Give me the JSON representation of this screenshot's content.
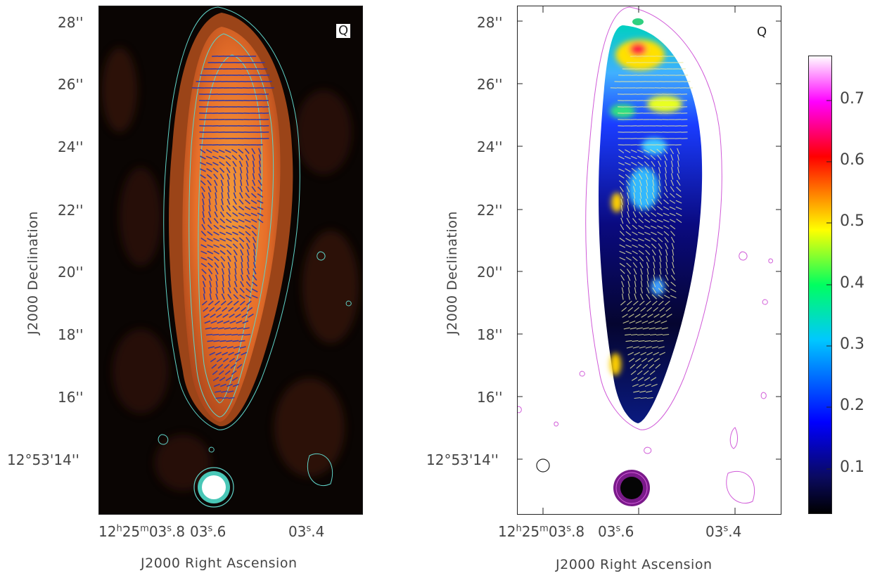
{
  "figure": {
    "left_panel": {
      "corner_label": "Q",
      "y_ticks": [
        "28''",
        "26''",
        "24''",
        "22''",
        "20''",
        "18''",
        "16''"
      ],
      "y_tick_last": "12°53'14''",
      "x_ticks": [
        "12h25m03s.8",
        "03s.6",
        "03s.4"
      ],
      "xlabel": "J2000 Right Ascension",
      "ylabel": "J2000 Declination"
    },
    "right_panel": {
      "corner_label": "Q",
      "y_ticks": [
        "28''",
        "26''",
        "24''",
        "22''",
        "20''",
        "18''",
        "16''"
      ],
      "y_tick_last": "12°53'14''",
      "x_ticks": [
        "12h25m03s.8",
        "03s.6",
        "03s.4"
      ],
      "xlabel": "J2000 Right Ascension",
      "ylabel": "J2000 Declination"
    },
    "colorbar": {
      "ticks": [
        "0.7",
        "0.6",
        "0.5",
        "0.4",
        "0.3",
        "0.2",
        "0.1"
      ],
      "colors": [
        "#000000",
        "#0a0a60",
        "#0000ff",
        "#00c8ff",
        "#00ff60",
        "#ffff00",
        "#ff8000",
        "#ff0000",
        "#ff00ff",
        "#ffffff"
      ]
    },
    "colors": {
      "left_background": "#0a0503",
      "left_jet": "#e86d2a",
      "left_contour": "#5fd3c8",
      "vector": "#3a3aa0",
      "right_contour": "#d05ad8"
    }
  }
}
